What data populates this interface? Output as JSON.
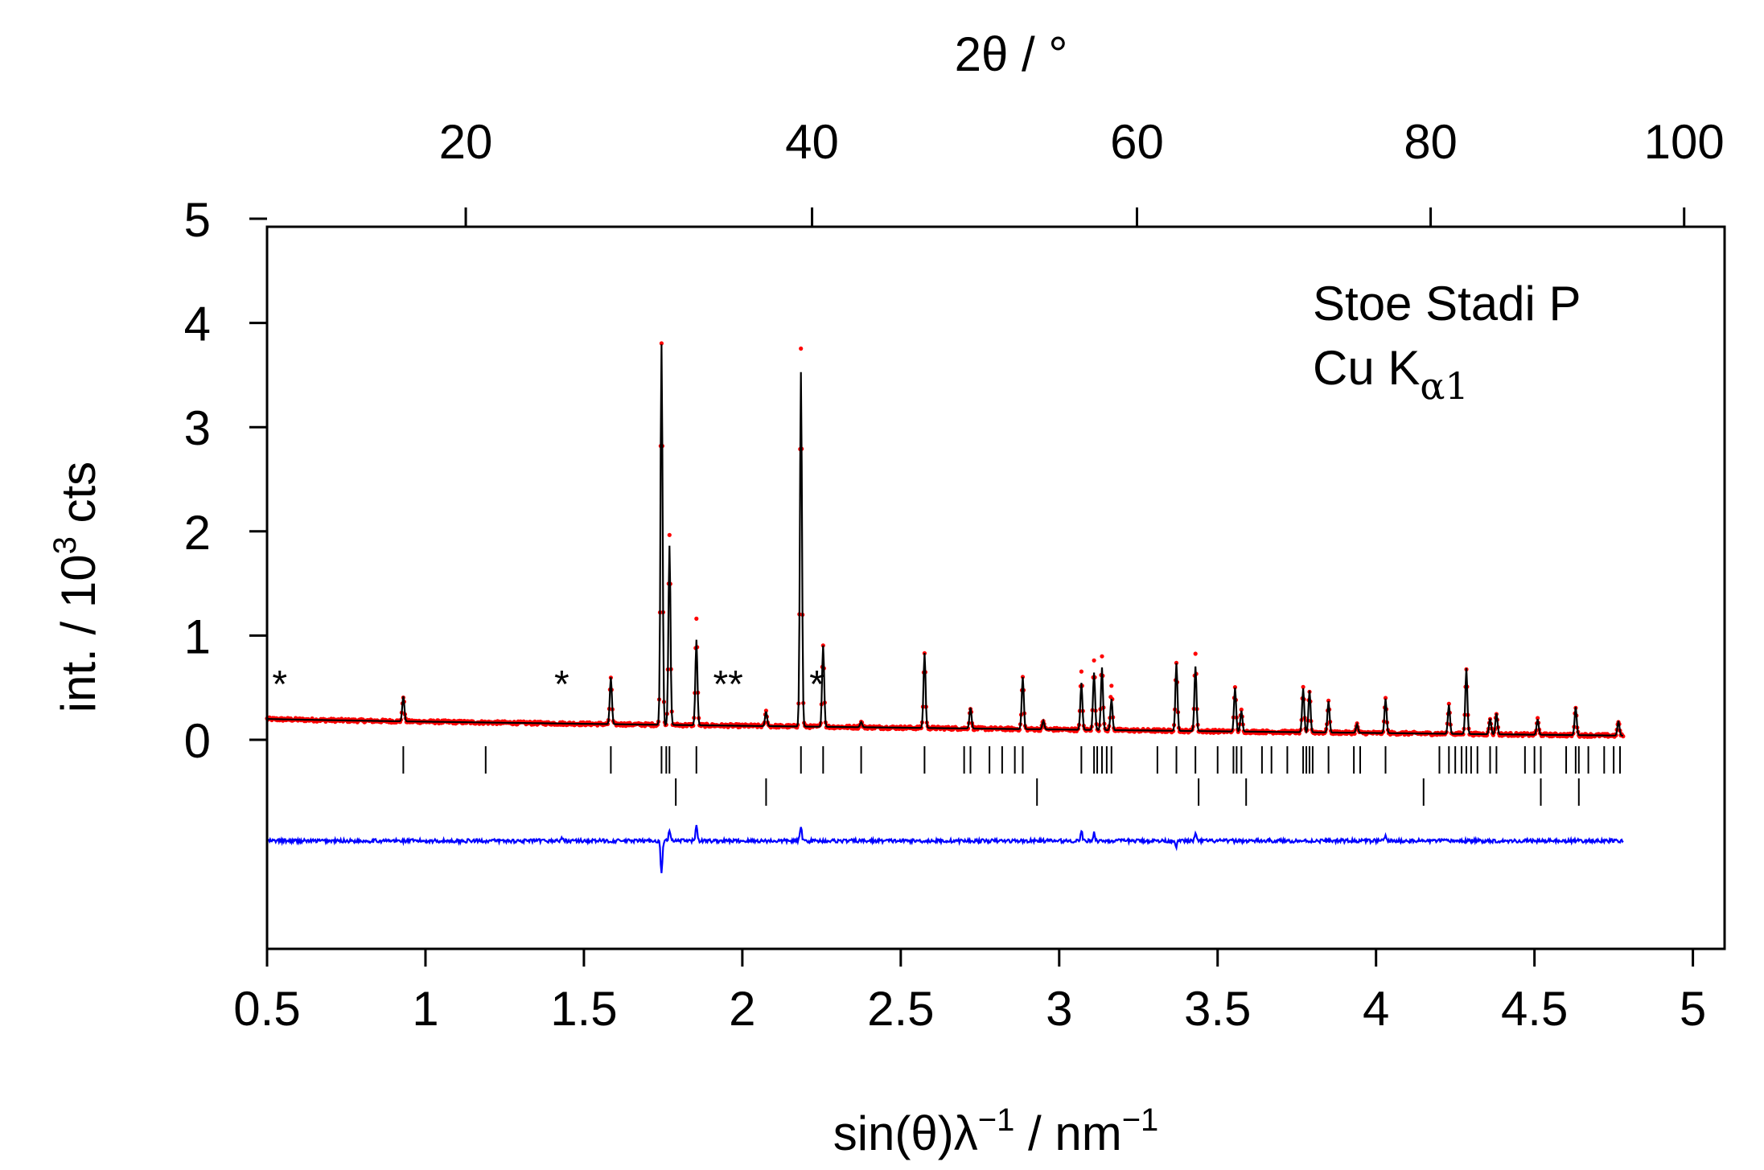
{
  "chart_data": {
    "type": "line",
    "title": "",
    "xlabel": "sin(θ)λ⁻¹ / nm⁻¹",
    "xlabel_parts": {
      "base": "sin(θ)λ",
      "sup1": "−1",
      "mid": " / nm",
      "sup2": "−1"
    },
    "ylabel": "int. / 10³ cts",
    "ylabel_parts": {
      "base": "int. / 10",
      "sup": "3",
      "tail": " cts"
    },
    "top_xlabel": "2θ / °",
    "xlim": [
      0.5,
      5.1
    ],
    "ylim": [
      -2,
      5
    ],
    "x_ticks": [
      0.5,
      1,
      1.5,
      2,
      2.5,
      3,
      3.5,
      4,
      4.5,
      5
    ],
    "x_tick_labels": [
      "0.5",
      "1",
      "1.5",
      "2",
      "2.5",
      "3",
      "3.5",
      "4",
      "4.5",
      "5"
    ],
    "y_ticks": [
      0,
      1,
      2,
      3,
      4,
      5
    ],
    "y_tick_labels": [
      "0",
      "1",
      "2",
      "3",
      "4",
      "5"
    ],
    "top_ticks": [
      20,
      40,
      60,
      80,
      100
    ],
    "top_tick_labels": [
      "20",
      "40",
      "60",
      "80",
      "100"
    ],
    "wavelength_nm": 0.15406,
    "annotation": {
      "line1": "Stoe Stadi P",
      "line2_base": "Cu K",
      "line2_sub": "α1"
    },
    "colors": {
      "observed": "#ff0000",
      "calculated": "#000000",
      "difference": "#0000ff",
      "reflections": "#000000"
    },
    "x_range": [
      0.5,
      4.78
    ],
    "background": {
      "start": 0.2,
      "end": 0.04
    },
    "peaks": [
      {
        "x": 0.93,
        "h": 0.24
      },
      {
        "x": 1.585,
        "h": 0.45
      },
      {
        "x": 1.745,
        "h": 3.65
      },
      {
        "x": 1.77,
        "h": 1.72
      },
      {
        "x": 1.855,
        "h": 0.82
      },
      {
        "x": 2.075,
        "h": 0.14
      },
      {
        "x": 2.185,
        "h": 3.4
      },
      {
        "x": 2.255,
        "h": 0.78
      },
      {
        "x": 2.375,
        "h": 0.05
      },
      {
        "x": 2.575,
        "h": 0.72
      },
      {
        "x": 2.72,
        "h": 0.2
      },
      {
        "x": 2.885,
        "h": 0.5
      },
      {
        "x": 2.95,
        "h": 0.08
      },
      {
        "x": 3.07,
        "h": 0.45
      },
      {
        "x": 3.11,
        "h": 0.55
      },
      {
        "x": 3.135,
        "h": 0.6
      },
      {
        "x": 3.165,
        "h": 0.3
      },
      {
        "x": 3.37,
        "h": 0.65
      },
      {
        "x": 3.43,
        "h": 0.62
      },
      {
        "x": 3.555,
        "h": 0.42
      },
      {
        "x": 3.575,
        "h": 0.2
      },
      {
        "x": 3.77,
        "h": 0.42
      },
      {
        "x": 3.79,
        "h": 0.4
      },
      {
        "x": 3.85,
        "h": 0.3
      },
      {
        "x": 3.94,
        "h": 0.08
      },
      {
        "x": 4.03,
        "h": 0.33
      },
      {
        "x": 4.23,
        "h": 0.28
      },
      {
        "x": 4.285,
        "h": 0.63
      },
      {
        "x": 4.36,
        "h": 0.15
      },
      {
        "x": 4.38,
        "h": 0.2
      },
      {
        "x": 4.51,
        "h": 0.15
      },
      {
        "x": 4.63,
        "h": 0.27
      },
      {
        "x": 4.765,
        "h": 0.14
      }
    ],
    "obs_deviations": [
      {
        "x": 1.77,
        "dy": 0.1
      },
      {
        "x": 1.855,
        "dy": 0.2
      },
      {
        "x": 2.185,
        "dy": 0.22
      },
      {
        "x": 3.07,
        "dy": 0.12
      },
      {
        "x": 3.11,
        "dy": 0.12
      },
      {
        "x": 3.135,
        "dy": 0.12
      },
      {
        "x": 3.165,
        "dy": 0.12
      },
      {
        "x": 3.43,
        "dy": 0.12
      }
    ],
    "difference_offset": -0.97,
    "difference_spikes": [
      {
        "x": 1.745,
        "dy": -0.32
      },
      {
        "x": 1.77,
        "dy": 0.1
      },
      {
        "x": 1.855,
        "dy": 0.16
      },
      {
        "x": 2.185,
        "dy": 0.14
      },
      {
        "x": 3.07,
        "dy": 0.1
      },
      {
        "x": 3.11,
        "dy": 0.08
      },
      {
        "x": 3.43,
        "dy": 0.06
      },
      {
        "x": 4.03,
        "dy": 0.05
      },
      {
        "x": 1.43,
        "dy": 0.03
      },
      {
        "x": 3.37,
        "dy": -0.05
      }
    ],
    "reflections_phase1": [
      0.93,
      1.19,
      1.585,
      1.745,
      1.76,
      1.77,
      1.855,
      2.185,
      2.255,
      2.375,
      2.575,
      2.7,
      2.72,
      2.78,
      2.82,
      2.86,
      2.885,
      3.07,
      3.11,
      3.12,
      3.135,
      3.15,
      3.165,
      3.31,
      3.37,
      3.43,
      3.5,
      3.55,
      3.56,
      3.575,
      3.64,
      3.67,
      3.72,
      3.77,
      3.78,
      3.79,
      3.8,
      3.85,
      3.93,
      3.95,
      4.03,
      4.2,
      4.23,
      4.25,
      4.27,
      4.285,
      4.3,
      4.32,
      4.36,
      4.38,
      4.47,
      4.5,
      4.52,
      4.6,
      4.63,
      4.64,
      4.67,
      4.72,
      4.75,
      4.77
    ],
    "reflections_phase2": [
      1.79,
      2.075,
      2.93,
      3.44,
      3.59,
      4.15,
      4.52,
      4.64
    ],
    "impurity_markers": [
      {
        "x": 0.54,
        "label": "*"
      },
      {
        "x": 1.43,
        "label": "*"
      },
      {
        "x": 1.955,
        "label": "**"
      },
      {
        "x": 2.235,
        "label": "*"
      }
    ]
  }
}
